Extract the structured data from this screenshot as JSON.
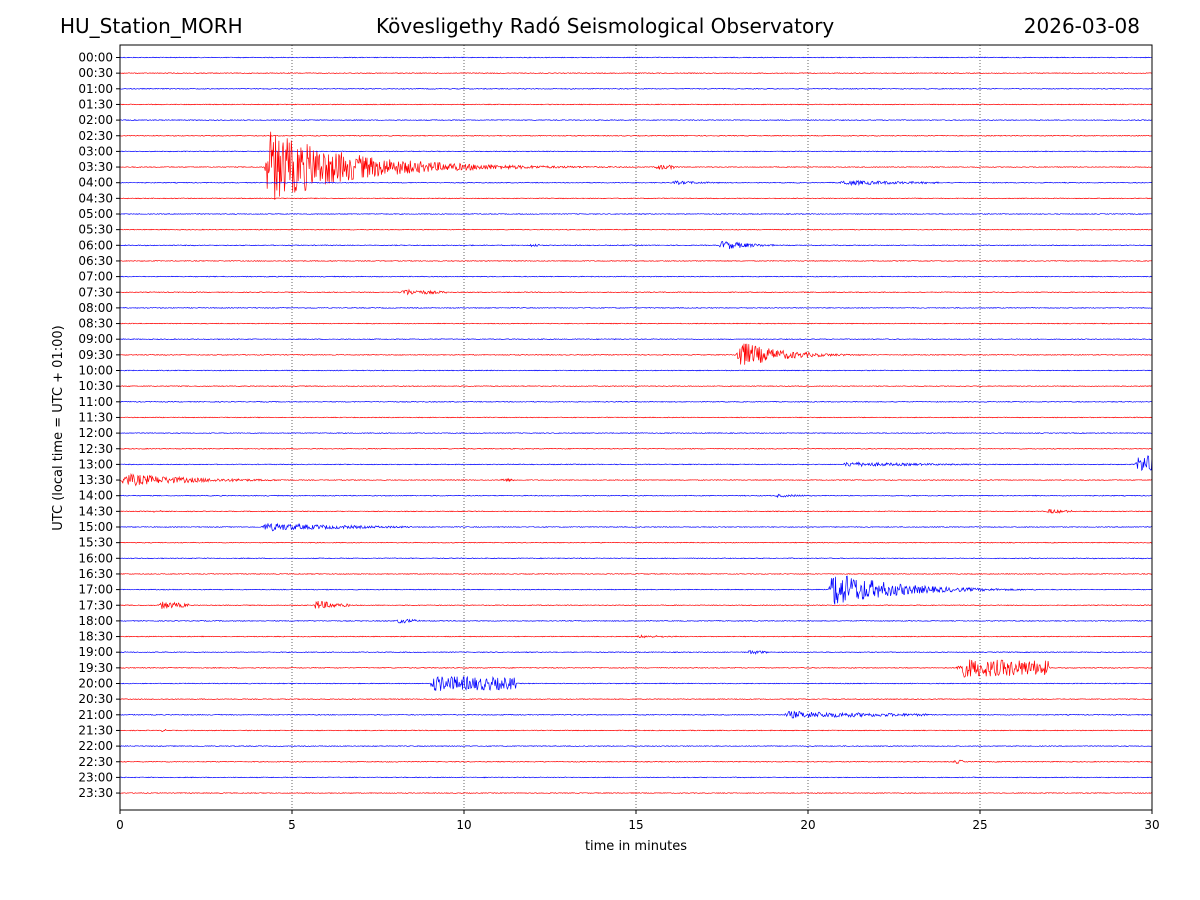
{
  "header": {
    "station": "HU_Station_MORH",
    "observatory": "Kövesligethy Radó Seismological Observatory",
    "date": "2026-03-08"
  },
  "chart_data": {
    "type": "line",
    "subtype": "helicorder",
    "xlabel": "time in minutes",
    "ylabel": "UTC (local time = UTC + 01:00)",
    "xlim": [
      0,
      30
    ],
    "x_ticks": [
      0,
      5,
      10,
      15,
      20,
      25,
      30
    ],
    "vertical_gridlines_at": [
      5,
      10,
      15,
      20,
      25
    ],
    "grid_style": "dotted",
    "row_colors": [
      "#0000ff",
      "#ff0000"
    ],
    "row_labels": [
      "00:00",
      "00:30",
      "01:00",
      "01:30",
      "02:00",
      "02:30",
      "03:00",
      "03:30",
      "04:00",
      "04:30",
      "05:00",
      "05:30",
      "06:00",
      "06:30",
      "07:00",
      "07:30",
      "08:00",
      "08:30",
      "09:00",
      "09:30",
      "10:00",
      "10:30",
      "11:00",
      "11:30",
      "12:00",
      "12:30",
      "13:00",
      "13:30",
      "14:00",
      "14:30",
      "15:00",
      "15:30",
      "16:00",
      "16:30",
      "17:00",
      "17:30",
      "18:00",
      "18:30",
      "19:00",
      "19:30",
      "20:00",
      "20:30",
      "21:00",
      "21:30",
      "22:00",
      "22:30",
      "23:00",
      "23:30"
    ],
    "events": [
      {
        "row": 7,
        "start": 4.2,
        "end": 15.5,
        "amp": 4.5,
        "decay": 0.42
      },
      {
        "row": 7,
        "start": 15.5,
        "end": 16.2,
        "amp": 0.35,
        "decay": 1.0
      },
      {
        "row": 8,
        "start": 16.0,
        "end": 17.5,
        "amp": 0.25,
        "decay": 1.0
      },
      {
        "row": 8,
        "start": 20.9,
        "end": 23.8,
        "amp": 0.3,
        "decay": 0.4
      },
      {
        "row": 12,
        "start": 11.8,
        "end": 12.2,
        "amp": 0.2,
        "decay": 1.0
      },
      {
        "row": 12,
        "start": 17.4,
        "end": 19.0,
        "amp": 0.65,
        "decay": 1.2
      },
      {
        "row": 15,
        "start": 8.1,
        "end": 9.5,
        "amp": 0.45,
        "decay": 1.0
      },
      {
        "row": 19,
        "start": 17.9,
        "end": 23.5,
        "amp": 1.8,
        "decay": 0.9
      },
      {
        "row": 26,
        "start": 21.0,
        "end": 25.5,
        "amp": 0.3,
        "decay": 0.4
      },
      {
        "row": 26,
        "start": 29.5,
        "end": 30.0,
        "amp": 1.0,
        "decay": 0.0
      },
      {
        "row": 27,
        "start": 0.0,
        "end": 4.8,
        "amp": 0.8,
        "decay": 0.5
      },
      {
        "row": 27,
        "start": 11.0,
        "end": 11.5,
        "amp": 0.2,
        "decay": 1.0
      },
      {
        "row": 28,
        "start": 19.0,
        "end": 20.2,
        "amp": 0.2,
        "decay": 1.0
      },
      {
        "row": 29,
        "start": 0.9,
        "end": 1.2,
        "amp": 0.15,
        "decay": 1.0
      },
      {
        "row": 29,
        "start": 26.9,
        "end": 27.7,
        "amp": 0.35,
        "decay": 1.5
      },
      {
        "row": 30,
        "start": 4.1,
        "end": 8.5,
        "amp": 0.5,
        "decay": 0.4
      },
      {
        "row": 34,
        "start": 20.6,
        "end": 29.0,
        "amp": 2.3,
        "decay": 0.6
      },
      {
        "row": 35,
        "start": 1.1,
        "end": 2.0,
        "amp": 0.5,
        "decay": 1.0
      },
      {
        "row": 35,
        "start": 5.6,
        "end": 6.7,
        "amp": 0.7,
        "decay": 1.5
      },
      {
        "row": 36,
        "start": 8.0,
        "end": 8.7,
        "amp": 0.35,
        "decay": 1.5
      },
      {
        "row": 37,
        "start": 15.0,
        "end": 16.3,
        "amp": 0.2,
        "decay": 1.0
      },
      {
        "row": 38,
        "start": 18.2,
        "end": 18.8,
        "amp": 0.3,
        "decay": 1.5
      },
      {
        "row": 39,
        "start": 24.3,
        "end": 27.0,
        "amp": 1.1,
        "decay": 0.1
      },
      {
        "row": 40,
        "start": 9.0,
        "end": 11.5,
        "amp": 0.9,
        "decay": 0.1
      },
      {
        "row": 42,
        "start": 19.3,
        "end": 23.5,
        "amp": 0.45,
        "decay": 0.3
      },
      {
        "row": 43,
        "start": 1.1,
        "end": 1.4,
        "amp": 0.15,
        "decay": 1.0
      },
      {
        "row": 45,
        "start": 24.2,
        "end": 24.5,
        "amp": 0.25,
        "decay": 1.0
      }
    ]
  }
}
